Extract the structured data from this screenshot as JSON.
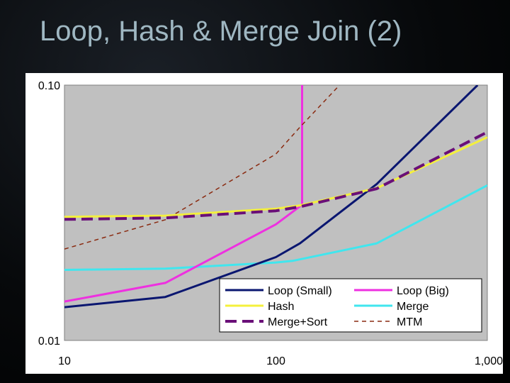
{
  "slide": {
    "title": "Loop, Hash & Merge Join (2)"
  },
  "chart_data": {
    "type": "line",
    "xscale": "log",
    "yscale": "log",
    "xlim": [
      10,
      1000
    ],
    "ylim": [
      0.01,
      0.1
    ],
    "x_ticks": [
      "10",
      "100",
      "1,000"
    ],
    "y_ticks": [
      "0.01",
      "0.10"
    ],
    "plot_background": "#c0c0c0",
    "legend_placement": "bottom-right",
    "series": [
      {
        "name": "Loop (Small)",
        "color": "#0a1670",
        "dash": "solid",
        "points": [
          [
            10,
            0.0135
          ],
          [
            30,
            0.0148
          ],
          [
            100,
            0.0212
          ],
          [
            130,
            0.024
          ],
          [
            300,
            0.041
          ],
          [
            900,
            0.1
          ]
        ]
      },
      {
        "name": "Loop (Big)",
        "color": "#ee30e0",
        "dash": "solid",
        "points": [
          [
            10,
            0.0142
          ],
          [
            30,
            0.0168
          ],
          [
            100,
            0.0285
          ],
          [
            133,
            0.034
          ],
          [
            133,
            0.1
          ]
        ]
      },
      {
        "name": "Hash",
        "color": "#f4f03c",
        "dash": "solid",
        "points": [
          [
            10,
            0.0305
          ],
          [
            30,
            0.0308
          ],
          [
            100,
            0.0328
          ],
          [
            130,
            0.0338
          ],
          [
            300,
            0.0395
          ],
          [
            1000,
            0.0625
          ]
        ]
      },
      {
        "name": "Merge",
        "color": "#40e6ee",
        "dash": "solid",
        "points": [
          [
            10,
            0.0189
          ],
          [
            30,
            0.0191
          ],
          [
            100,
            0.0202
          ],
          [
            120,
            0.0205
          ],
          [
            300,
            0.024
          ],
          [
            1000,
            0.0405
          ]
        ]
      },
      {
        "name": "Merge+Sort",
        "color": "#6a0f78",
        "dash": "long-dash",
        "points": [
          [
            10,
            0.0298
          ],
          [
            30,
            0.0302
          ],
          [
            100,
            0.0322
          ],
          [
            130,
            0.0334
          ],
          [
            300,
            0.0393
          ],
          [
            1000,
            0.0655
          ]
        ]
      },
      {
        "name": "MTM",
        "color": "#8a2a10",
        "dash": "short-dash",
        "points": [
          [
            10,
            0.0228
          ],
          [
            30,
            0.0297
          ],
          [
            100,
            0.0537
          ],
          [
            130,
            0.0685
          ],
          [
            200,
            0.1
          ]
        ]
      }
    ]
  }
}
